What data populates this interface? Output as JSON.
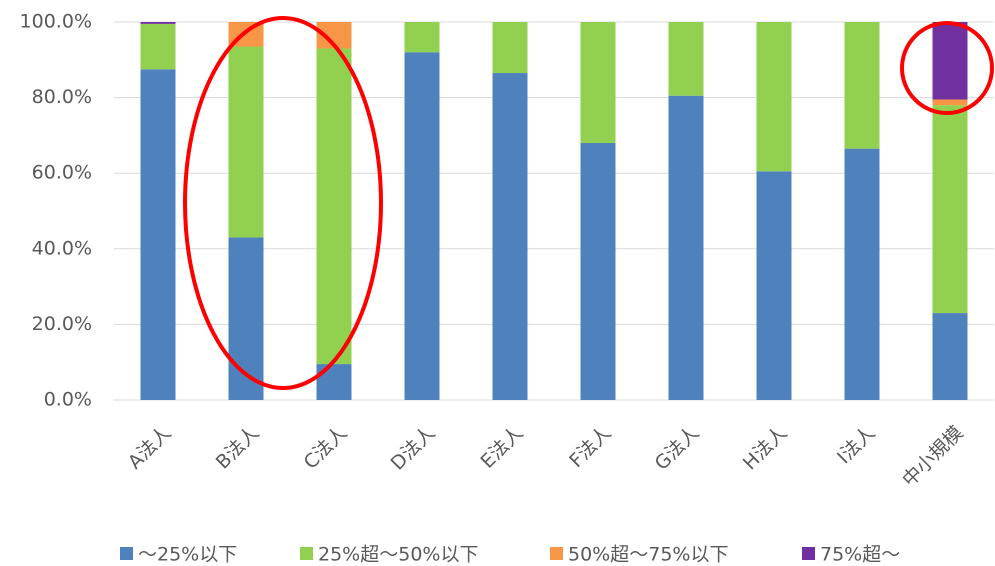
{
  "chart_data": {
    "type": "stacked_bar",
    "categories": [
      "A法人",
      "B法人",
      "C法人",
      "D法人",
      "E法人",
      "F法人",
      "G法人",
      "H法人",
      "I法人",
      "中小規模"
    ],
    "series": [
      {
        "name": "～25%以下",
        "color": "#4f81bd",
        "values": [
          87.5,
          43,
          9.5,
          92,
          86.5,
          68,
          80.5,
          60.5,
          66.5,
          23
        ]
      },
      {
        "name": "25%超～50%以下",
        "color": "#92d050",
        "values": [
          12,
          50.5,
          83.5,
          8,
          13.5,
          32,
          19.5,
          39.5,
          33.5,
          55
        ]
      },
      {
        "name": "50%超～75%以下",
        "color": "#f79646",
        "values": [
          0,
          6.5,
          7,
          0,
          0,
          0,
          0,
          0,
          0,
          1.5
        ]
      },
      {
        "name": "75%超～",
        "color": "#7030a0",
        "values": [
          0.5,
          0,
          0,
          0,
          0,
          0,
          0,
          0,
          0,
          20.5
        ]
      }
    ],
    "ylim": [
      0,
      100
    ],
    "yticks": [
      {
        "value": 0,
        "label": "0.0%"
      },
      {
        "value": 20,
        "label": "20.0%"
      },
      {
        "value": 40,
        "label": "40.0%"
      },
      {
        "value": 60,
        "label": "60.0%"
      },
      {
        "value": 80,
        "label": "80.0%"
      },
      {
        "value": 100,
        "label": "100.0%"
      }
    ],
    "grid": true,
    "legend": "bottom"
  }
}
